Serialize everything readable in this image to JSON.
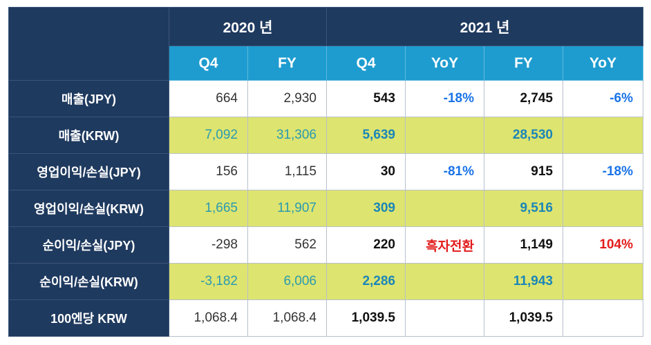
{
  "header": {
    "year_2020": "2020 년",
    "year_2021": "2021 년",
    "periods": [
      "Q4",
      "FY",
      "Q4",
      "YoY",
      "FY",
      "YoY"
    ]
  },
  "rows": [
    {
      "label": "매출(JPY)",
      "q4_2020": "664",
      "fy_2020": "2,930",
      "q4_2021": "543",
      "q4_yoy": "-18%",
      "fy_2021": "2,745",
      "fy_yoy": "-6%"
    },
    {
      "label": "매출(KRW)",
      "q4_2020": "7,092",
      "fy_2020": "31,306",
      "q4_2021": "5,639",
      "q4_yoy": "",
      "fy_2021": "28,530",
      "fy_yoy": ""
    },
    {
      "label": "영업이익/손실(JPY)",
      "q4_2020": "156",
      "fy_2020": "1,115",
      "q4_2021": "30",
      "q4_yoy": "-81%",
      "fy_2021": "915",
      "fy_yoy": "-18%"
    },
    {
      "label": "영업이익/손실(KRW)",
      "q4_2020": "1,665",
      "fy_2020": "11,907",
      "q4_2021": "309",
      "q4_yoy": "",
      "fy_2021": "9,516",
      "fy_yoy": ""
    },
    {
      "label": "순이익/손실(JPY)",
      "q4_2020": "-298",
      "fy_2020": "562",
      "q4_2021": "220",
      "q4_yoy": "흑자전환",
      "fy_2021": "1,149",
      "fy_yoy": "104%"
    },
    {
      "label": "순이익/손실(KRW)",
      "q4_2020": "-3,182",
      "fy_2020": "6,006",
      "q4_2021": "2,286",
      "q4_yoy": "",
      "fy_2021": "11,943",
      "fy_yoy": ""
    },
    {
      "label": "100엔당 KRW",
      "q4_2020": "1,068.4",
      "fy_2020": "1,068.4",
      "q4_2021": "1,039.5",
      "q4_yoy": "",
      "fy_2021": "1,039.5",
      "fy_yoy": ""
    }
  ],
  "colors": {
    "header_navy": "#1f3a5f",
    "period_blue": "#1e9ccf",
    "highlight_yellow": "#dde46f",
    "yoy_blue": "#1a73e8",
    "yoy_red": "#e21b1b"
  }
}
